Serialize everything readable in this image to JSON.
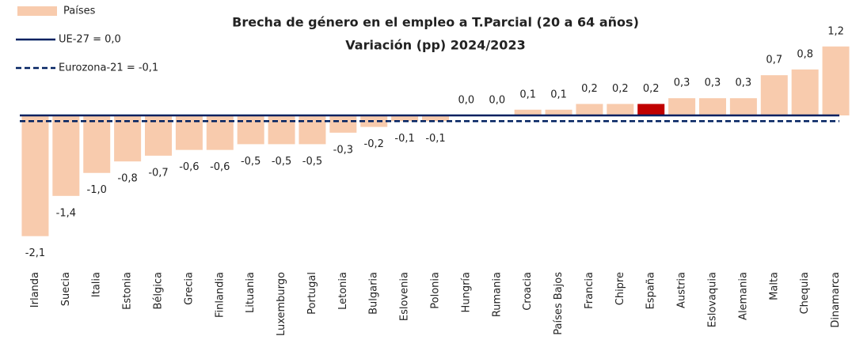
{
  "chart_data": {
    "type": "bar",
    "title": "Brecha de género en el empleo a T.Parcial (20 a 64 años)",
    "subtitle": "Variación (pp) 2024/2023",
    "series_name": "Países",
    "categories": [
      "Irlanda",
      "Suecia",
      "Italia",
      "Estonia",
      "Bélgica",
      "Grecia",
      "Finlandia",
      "Lituania",
      "Luxemburgo",
      "Portugal",
      "Letonia",
      "Bulgaria",
      "Eslovenia",
      "Polonia",
      "Hungría",
      "Rumania",
      "Croacia",
      "Países Bajos",
      "Francia",
      "Chipre",
      "España",
      "Austria",
      "Eslovaquia",
      "Alemania",
      "Malta",
      "Chequia",
      "Dinamarca"
    ],
    "values": [
      -2.1,
      -1.4,
      -1.0,
      -0.8,
      -0.7,
      -0.6,
      -0.6,
      -0.5,
      -0.5,
      -0.5,
      -0.3,
      -0.2,
      -0.1,
      -0.1,
      0.0,
      0.0,
      0.1,
      0.1,
      0.2,
      0.2,
      0.2,
      0.3,
      0.3,
      0.3,
      0.7,
      0.8,
      1.2
    ],
    "value_labels": [
      "-2,1",
      "-1,4",
      "-1,0",
      "-0,8",
      "-0,7",
      "-0,6",
      "-0,6",
      "-0,5",
      "-0,5",
      "-0,5",
      "-0,3",
      "-0,2",
      "-0,1",
      "-0,1",
      "0,0",
      "0,0",
      "0,1",
      "0,1",
      "0,2",
      "0,2",
      "0,2",
      "0,3",
      "0,3",
      "0,3",
      "0,7",
      "0,8",
      "1,2"
    ],
    "colors": [
      "#f8cbad",
      "#f8cbad",
      "#f8cbad",
      "#f8cbad",
      "#f8cbad",
      "#f8cbad",
      "#f8cbad",
      "#f8cbad",
      "#f8cbad",
      "#f8cbad",
      "#f8cbad",
      "#f8cbad",
      "#f8cbad",
      "#f8cbad",
      "#f8cbad",
      "#f8cbad",
      "#f8cbad",
      "#f8cbad",
      "#f8cbad",
      "#f8cbad",
      "#c00000",
      "#f8cbad",
      "#f8cbad",
      "#f8cbad",
      "#f8cbad",
      "#f8cbad",
      "#f8cbad"
    ],
    "ylim": [
      -2.2,
      1.3
    ],
    "reference_lines": [
      {
        "name": "UE-27 = 0,0",
        "value": 0.0,
        "color": "#002060",
        "style": "solid"
      },
      {
        "name": "Eurozona-21 = -0,1",
        "value": -0.1,
        "color": "#002060",
        "style": "dashed"
      }
    ],
    "legend": "top-left"
  }
}
